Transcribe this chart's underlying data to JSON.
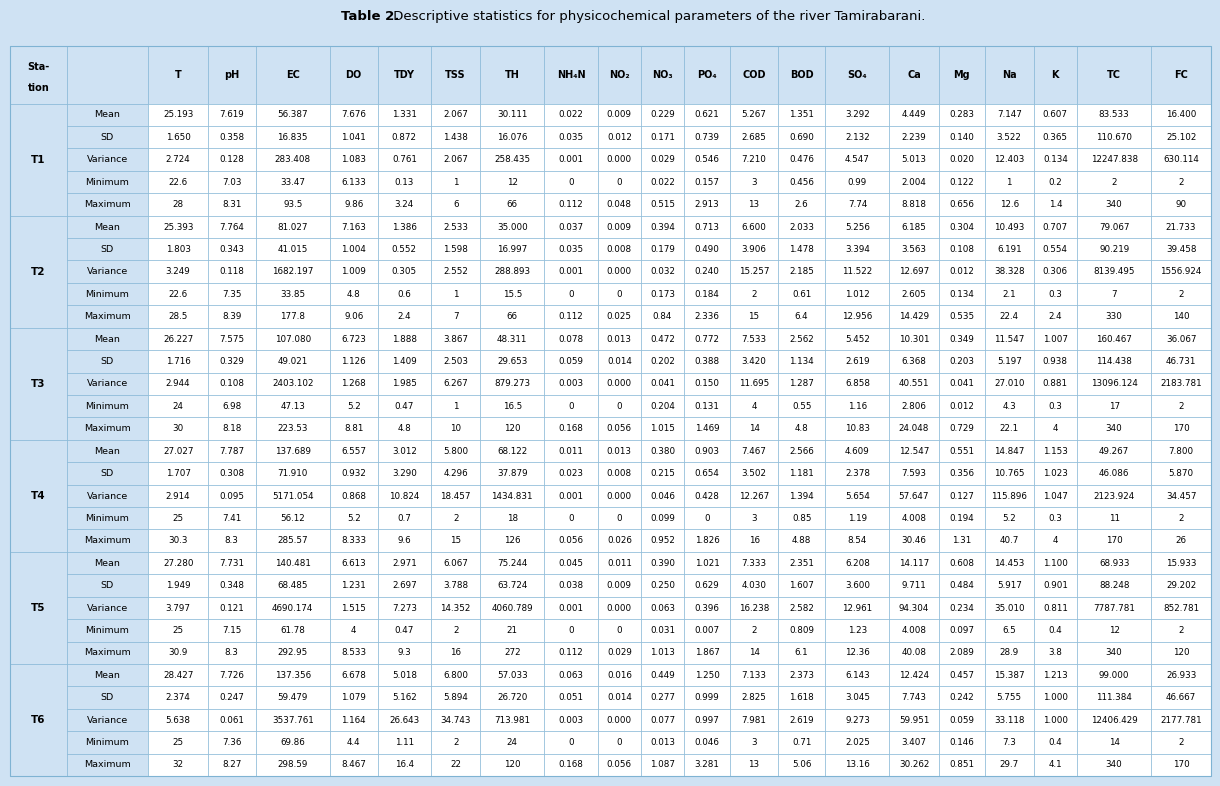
{
  "title_bold": "Table 2.",
  "title_normal": " Descriptive statistics for physicochemical parameters of the river Tamirabarani.",
  "background_color": "#cfe2f3",
  "header_bg": "#cfe2f3",
  "cell_bg": "#ffffff",
  "border_color": "#7fb3d3",
  "stations": [
    "T1",
    "T2",
    "T3",
    "T4",
    "T5",
    "T6"
  ],
  "row_labels": [
    "Mean",
    "SD",
    "Variance",
    "Minimum",
    "Maximum"
  ],
  "col_headers": [
    "Sta-\ntion",
    "",
    "T",
    "pH",
    "EC",
    "DO",
    "TDY",
    "TSS",
    "TH",
    "NH₄N",
    "NO₂",
    "NO₃",
    "PO₄",
    "COD",
    "BOD",
    "SO₄",
    "Ca",
    "Mg",
    "Na",
    "K",
    "TC",
    "FC"
  ],
  "data": {
    "T1": {
      "Mean": [
        "25.193",
        "7.619",
        "56.387",
        "7.676",
        "1.331",
        "2.067",
        "30.111",
        "0.022",
        "0.009",
        "0.229",
        "0.621",
        "5.267",
        "1.351",
        "3.292",
        "4.449",
        "0.283",
        "7.147",
        "0.607",
        "83.533",
        "16.400"
      ],
      "SD": [
        "1.650",
        "0.358",
        "16.835",
        "1.041",
        "0.872",
        "1.438",
        "16.076",
        "0.035",
        "0.012",
        "0.171",
        "0.739",
        "2.685",
        "0.690",
        "2.132",
        "2.239",
        "0.140",
        "3.522",
        "0.365",
        "110.670",
        "25.102"
      ],
      "Variance": [
        "2.724",
        "0.128",
        "283.408",
        "1.083",
        "0.761",
        "2.067",
        "258.435",
        "0.001",
        "0.000",
        "0.029",
        "0.546",
        "7.210",
        "0.476",
        "4.547",
        "5.013",
        "0.020",
        "12.403",
        "0.134",
        "12247.838",
        "630.114"
      ],
      "Minimum": [
        "22.6",
        "7.03",
        "33.47",
        "6.133",
        "0.13",
        "1",
        "12",
        "0",
        "0",
        "0.022",
        "0.157",
        "3",
        "0.456",
        "0.99",
        "2.004",
        "0.122",
        "1",
        "0.2",
        "2",
        "2"
      ],
      "Maximum": [
        "28",
        "8.31",
        "93.5",
        "9.86",
        "3.24",
        "6",
        "66",
        "0.112",
        "0.048",
        "0.515",
        "2.913",
        "13",
        "2.6",
        "7.74",
        "8.818",
        "0.656",
        "12.6",
        "1.4",
        "340",
        "90"
      ]
    },
    "T2": {
      "Mean": [
        "25.393",
        "7.764",
        "81.027",
        "7.163",
        "1.386",
        "2.533",
        "35.000",
        "0.037",
        "0.009",
        "0.394",
        "0.713",
        "6.600",
        "2.033",
        "5.256",
        "6.185",
        "0.304",
        "10.493",
        "0.707",
        "79.067",
        "21.733"
      ],
      "SD": [
        "1.803",
        "0.343",
        "41.015",
        "1.004",
        "0.552",
        "1.598",
        "16.997",
        "0.035",
        "0.008",
        "0.179",
        "0.490",
        "3.906",
        "1.478",
        "3.394",
        "3.563",
        "0.108",
        "6.191",
        "0.554",
        "90.219",
        "39.458"
      ],
      "Variance": [
        "3.249",
        "0.118",
        "1682.197",
        "1.009",
        "0.305",
        "2.552",
        "288.893",
        "0.001",
        "0.000",
        "0.032",
        "0.240",
        "15.257",
        "2.185",
        "11.522",
        "12.697",
        "0.012",
        "38.328",
        "0.306",
        "8139.495",
        "1556.924"
      ],
      "Minimum": [
        "22.6",
        "7.35",
        "33.85",
        "4.8",
        "0.6",
        "1",
        "15.5",
        "0",
        "0",
        "0.173",
        "0.184",
        "2",
        "0.61",
        "1.012",
        "2.605",
        "0.134",
        "2.1",
        "0.3",
        "7",
        "2"
      ],
      "Maximum": [
        "28.5",
        "8.39",
        "177.8",
        "9.06",
        "2.4",
        "7",
        "66",
        "0.112",
        "0.025",
        "0.84",
        "2.336",
        "15",
        "6.4",
        "12.956",
        "14.429",
        "0.535",
        "22.4",
        "2.4",
        "330",
        "140"
      ]
    },
    "T3": {
      "Mean": [
        "26.227",
        "7.575",
        "107.080",
        "6.723",
        "1.888",
        "3.867",
        "48.311",
        "0.078",
        "0.013",
        "0.472",
        "0.772",
        "7.533",
        "2.562",
        "5.452",
        "10.301",
        "0.349",
        "11.547",
        "1.007",
        "160.467",
        "36.067"
      ],
      "SD": [
        "1.716",
        "0.329",
        "49.021",
        "1.126",
        "1.409",
        "2.503",
        "29.653",
        "0.059",
        "0.014",
        "0.202",
        "0.388",
        "3.420",
        "1.134",
        "2.619",
        "6.368",
        "0.203",
        "5.197",
        "0.938",
        "114.438",
        "46.731"
      ],
      "Variance": [
        "2.944",
        "0.108",
        "2403.102",
        "1.268",
        "1.985",
        "6.267",
        "879.273",
        "0.003",
        "0.000",
        "0.041",
        "0.150",
        "11.695",
        "1.287",
        "6.858",
        "40.551",
        "0.041",
        "27.010",
        "0.881",
        "13096.124",
        "2183.781"
      ],
      "Minimum": [
        "24",
        "6.98",
        "47.13",
        "5.2",
        "0.47",
        "1",
        "16.5",
        "0",
        "0",
        "0.204",
        "0.131",
        "4",
        "0.55",
        "1.16",
        "2.806",
        "0.012",
        "4.3",
        "0.3",
        "17",
        "2"
      ],
      "Maximum": [
        "30",
        "8.18",
        "223.53",
        "8.81",
        "4.8",
        "10",
        "120",
        "0.168",
        "0.056",
        "1.015",
        "1.469",
        "14",
        "4.8",
        "10.83",
        "24.048",
        "0.729",
        "22.1",
        "4",
        "340",
        "170"
      ]
    },
    "T4": {
      "Mean": [
        "27.027",
        "7.787",
        "137.689",
        "6.557",
        "3.012",
        "5.800",
        "68.122",
        "0.011",
        "0.013",
        "0.380",
        "0.903",
        "7.467",
        "2.566",
        "4.609",
        "12.547",
        "0.551",
        "14.847",
        "1.153",
        "49.267",
        "7.800"
      ],
      "SD": [
        "1.707",
        "0.308",
        "71.910",
        "0.932",
        "3.290",
        "4.296",
        "37.879",
        "0.023",
        "0.008",
        "0.215",
        "0.654",
        "3.502",
        "1.181",
        "2.378",
        "7.593",
        "0.356",
        "10.765",
        "1.023",
        "46.086",
        "5.870"
      ],
      "Variance": [
        "2.914",
        "0.095",
        "5171.054",
        "0.868",
        "10.824",
        "18.457",
        "1434.831",
        "0.001",
        "0.000",
        "0.046",
        "0.428",
        "12.267",
        "1.394",
        "5.654",
        "57.647",
        "0.127",
        "115.896",
        "1.047",
        "2123.924",
        "34.457"
      ],
      "Minimum": [
        "25",
        "7.41",
        "56.12",
        "5.2",
        "0.7",
        "2",
        "18",
        "0",
        "0",
        "0.099",
        "0",
        "3",
        "0.85",
        "1.19",
        "4.008",
        "0.194",
        "5.2",
        "0.3",
        "11",
        "2"
      ],
      "Maximum": [
        "30.3",
        "8.3",
        "285.57",
        "8.333",
        "9.6",
        "15",
        "126",
        "0.056",
        "0.026",
        "0.952",
        "1.826",
        "16",
        "4.88",
        "8.54",
        "30.46",
        "1.31",
        "40.7",
        "4",
        "170",
        "26"
      ]
    },
    "T5": {
      "Mean": [
        "27.280",
        "7.731",
        "140.481",
        "6.613",
        "2.971",
        "6.067",
        "75.244",
        "0.045",
        "0.011",
        "0.390",
        "1.021",
        "7.333",
        "2.351",
        "6.208",
        "14.117",
        "0.608",
        "14.453",
        "1.100",
        "68.933",
        "15.933"
      ],
      "SD": [
        "1.949",
        "0.348",
        "68.485",
        "1.231",
        "2.697",
        "3.788",
        "63.724",
        "0.038",
        "0.009",
        "0.250",
        "0.629",
        "4.030",
        "1.607",
        "3.600",
        "9.711",
        "0.484",
        "5.917",
        "0.901",
        "88.248",
        "29.202"
      ],
      "Variance": [
        "3.797",
        "0.121",
        "4690.174",
        "1.515",
        "7.273",
        "14.352",
        "4060.789",
        "0.001",
        "0.000",
        "0.063",
        "0.396",
        "16.238",
        "2.582",
        "12.961",
        "94.304",
        "0.234",
        "35.010",
        "0.811",
        "7787.781",
        "852.781"
      ],
      "Minimum": [
        "25",
        "7.15",
        "61.78",
        "4",
        "0.47",
        "2",
        "21",
        "0",
        "0",
        "0.031",
        "0.007",
        "2",
        "0.809",
        "1.23",
        "4.008",
        "0.097",
        "6.5",
        "0.4",
        "12",
        "2"
      ],
      "Maximum": [
        "30.9",
        "8.3",
        "292.95",
        "8.533",
        "9.3",
        "16",
        "272",
        "0.112",
        "0.029",
        "1.013",
        "1.867",
        "14",
        "6.1",
        "12.36",
        "40.08",
        "2.089",
        "28.9",
        "3.8",
        "340",
        "120"
      ]
    },
    "T6": {
      "Mean": [
        "28.427",
        "7.726",
        "137.356",
        "6.678",
        "5.018",
        "6.800",
        "57.033",
        "0.063",
        "0.016",
        "0.449",
        "1.250",
        "7.133",
        "2.373",
        "6.143",
        "12.424",
        "0.457",
        "15.387",
        "1.213",
        "99.000",
        "26.933"
      ],
      "SD": [
        "2.374",
        "0.247",
        "59.479",
        "1.079",
        "5.162",
        "5.894",
        "26.720",
        "0.051",
        "0.014",
        "0.277",
        "0.999",
        "2.825",
        "1.618",
        "3.045",
        "7.743",
        "0.242",
        "5.755",
        "1.000",
        "111.384",
        "46.667"
      ],
      "Variance": [
        "5.638",
        "0.061",
        "3537.761",
        "1.164",
        "26.643",
        "34.743",
        "713.981",
        "0.003",
        "0.000",
        "0.077",
        "0.997",
        "7.981",
        "2.619",
        "9.273",
        "59.951",
        "0.059",
        "33.118",
        "1.000",
        "12406.429",
        "2177.781"
      ],
      "Minimum": [
        "25",
        "7.36",
        "69.86",
        "4.4",
        "1.11",
        "2",
        "24",
        "0",
        "0",
        "0.013",
        "0.046",
        "3",
        "0.71",
        "2.025",
        "3.407",
        "0.146",
        "7.3",
        "0.4",
        "14",
        "2"
      ],
      "Maximum": [
        "32",
        "8.27",
        "298.59",
        "8.467",
        "16.4",
        "22",
        "120",
        "0.168",
        "0.056",
        "1.087",
        "3.281",
        "13",
        "5.06",
        "13.16",
        "30.262",
        "0.851",
        "29.7",
        "4.1",
        "340",
        "170"
      ]
    }
  }
}
